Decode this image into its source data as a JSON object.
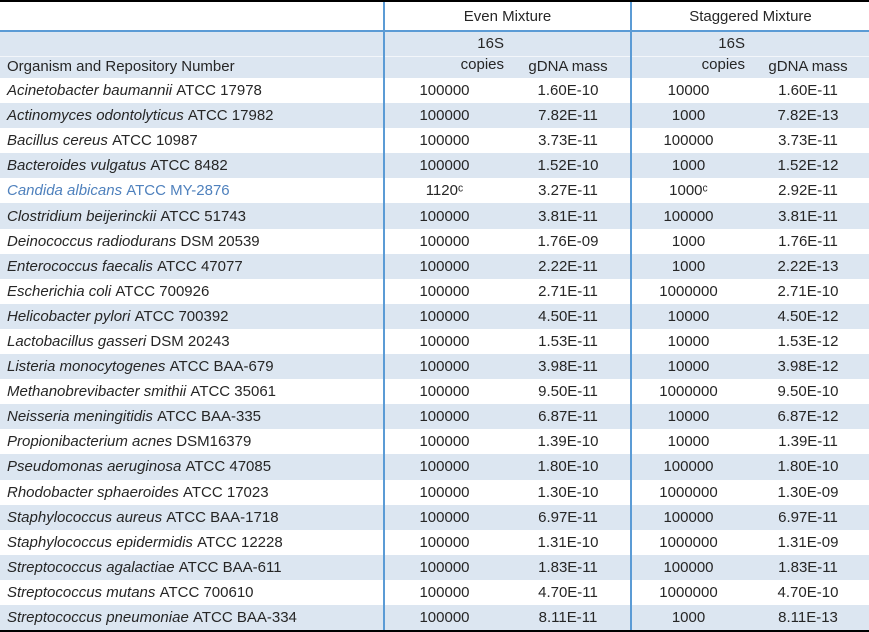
{
  "table": {
    "group_headers": {
      "even": "Even Mixture",
      "staggered": "Staggered Mixture"
    },
    "col_headers": {
      "organism": "Organism and Repository Number",
      "copies_line1": "16S",
      "copies_line2": "copies",
      "gdna_mass": "gDNA mass"
    },
    "rows": [
      {
        "organism": "Acinetobacter baumannii",
        "accession": "ATCC 17978",
        "even_copies": "100000",
        "even_mass": "1.60E-10",
        "stag_copies": "10000",
        "stag_mass": "1.60E-11",
        "highlight": false
      },
      {
        "organism": "Actinomyces odontolyticus",
        "accession": "ATCC 17982",
        "even_copies": "100000",
        "even_mass": "7.82E-11",
        "stag_copies": "1000",
        "stag_mass": "7.82E-13",
        "highlight": false
      },
      {
        "organism": "Bacillus cereus",
        "accession": "ATCC 10987",
        "even_copies": "100000",
        "even_mass": "3.73E-11",
        "stag_copies": "100000",
        "stag_mass": "3.73E-11",
        "highlight": false
      },
      {
        "organism": "Bacteroides vulgatus",
        "accession": "ATCC 8482",
        "even_copies": "100000",
        "even_mass": "1.52E-10",
        "stag_copies": "1000",
        "stag_mass": "1.52E-12",
        "highlight": false
      },
      {
        "organism": "Candida albicans",
        "accession": "ATCC MY-2876",
        "even_copies": "1120ᶜ",
        "even_mass": "3.27E-11",
        "stag_copies": "1000ᶜ",
        "stag_mass": "2.92E-11",
        "highlight": true
      },
      {
        "organism": "Clostridium beijerinckii",
        "accession": "ATCC 51743",
        "even_copies": "100000",
        "even_mass": "3.81E-11",
        "stag_copies": "100000",
        "stag_mass": "3.81E-11",
        "highlight": false
      },
      {
        "organism": "Deinococcus radiodurans",
        "accession": "DSM 20539",
        "even_copies": "100000",
        "even_mass": "1.76E-09",
        "stag_copies": "1000",
        "stag_mass": "1.76E-11",
        "highlight": false
      },
      {
        "organism": "Enterococcus faecalis",
        "accession": "ATCC 47077",
        "even_copies": "100000",
        "even_mass": "2.22E-11",
        "stag_copies": "1000",
        "stag_mass": "2.22E-13",
        "highlight": false
      },
      {
        "organism": "Escherichia coli",
        "accession": "ATCC 700926",
        "even_copies": "100000",
        "even_mass": "2.71E-11",
        "stag_copies": "1000000",
        "stag_mass": "2.71E-10",
        "highlight": false
      },
      {
        "organism": "Helicobacter pylori",
        "accession": "ATCC 700392",
        "even_copies": "100000",
        "even_mass": "4.50E-11",
        "stag_copies": "10000",
        "stag_mass": "4.50E-12",
        "highlight": false
      },
      {
        "organism": "Lactobacillus gasseri",
        "accession": "DSM 20243",
        "even_copies": "100000",
        "even_mass": "1.53E-11",
        "stag_copies": "10000",
        "stag_mass": "1.53E-12",
        "highlight": false
      },
      {
        "organism": "Listeria monocytogenes",
        "accession": "ATCC BAA-679",
        "even_copies": "100000",
        "even_mass": "3.98E-11",
        "stag_copies": "10000",
        "stag_mass": "3.98E-12",
        "highlight": false
      },
      {
        "organism": "Methanobrevibacter smithii",
        "accession": "ATCC 35061",
        "even_copies": "100000",
        "even_mass": "9.50E-11",
        "stag_copies": "1000000",
        "stag_mass": "9.50E-10",
        "highlight": false
      },
      {
        "organism": "Neisseria meningitidis",
        "accession": "ATCC BAA-335",
        "even_copies": "100000",
        "even_mass": "6.87E-11",
        "stag_copies": "10000",
        "stag_mass": "6.87E-12",
        "highlight": false
      },
      {
        "organism": "Propionibacterium acnes",
        "accession": "DSM16379",
        "even_copies": "100000",
        "even_mass": "1.39E-10",
        "stag_copies": "10000",
        "stag_mass": "1.39E-11",
        "highlight": false
      },
      {
        "organism": "Pseudomonas aeruginosa",
        "accession": "ATCC 47085",
        "even_copies": "100000",
        "even_mass": "1.80E-10",
        "stag_copies": "100000",
        "stag_mass": "1.80E-10",
        "highlight": false
      },
      {
        "organism": "Rhodobacter sphaeroides",
        "accession": "ATCC 17023",
        "even_copies": "100000",
        "even_mass": "1.30E-10",
        "stag_copies": "1000000",
        "stag_mass": "1.30E-09",
        "highlight": false
      },
      {
        "organism": "Staphylococcus aureus",
        "accession": "ATCC BAA-1718",
        "even_copies": "100000",
        "even_mass": "6.97E-11",
        "stag_copies": "100000",
        "stag_mass": "6.97E-11",
        "highlight": false
      },
      {
        "organism": "Staphylococcus epidermidis",
        "accession": "ATCC 12228",
        "even_copies": "100000",
        "even_mass": "1.31E-10",
        "stag_copies": "1000000",
        "stag_mass": "1.31E-09",
        "highlight": false
      },
      {
        "organism": "Streptococcus agalactiae",
        "accession": "ATCC BAA-611",
        "even_copies": "100000",
        "even_mass": "1.83E-11",
        "stag_copies": "100000",
        "stag_mass": "1.83E-11",
        "highlight": false
      },
      {
        "organism": "Streptococcus mutans",
        "accession": "ATCC 700610",
        "even_copies": "100000",
        "even_mass": "4.70E-11",
        "stag_copies": "1000000",
        "stag_mass": "4.70E-10",
        "highlight": false
      },
      {
        "organism": "Streptococcus pneumoniae",
        "accession": "ATCC BAA-334",
        "even_copies": "100000",
        "even_mass": "8.11E-11",
        "stag_copies": "1000",
        "stag_mass": "8.11E-13",
        "highlight": false
      }
    ]
  },
  "colors": {
    "row_shade": "#dce6f1",
    "blue_rule": "#5b9bd5",
    "highlight_text": "#4f81bd",
    "black_rule": "#000000"
  }
}
